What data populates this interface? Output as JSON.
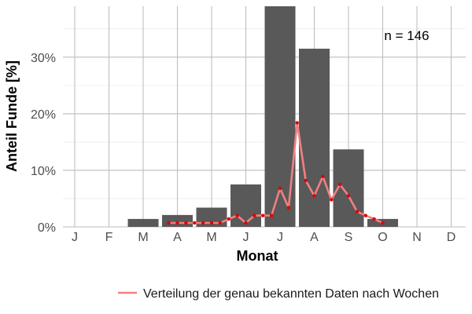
{
  "chart_data": {
    "type": "bar",
    "categories": [
      "J",
      "F",
      "M",
      "A",
      "M",
      "J",
      "J",
      "A",
      "S",
      "O",
      "N",
      "D"
    ],
    "values": [
      0,
      0,
      1.4,
      2.1,
      3.4,
      7.5,
      39.0,
      31.5,
      13.7,
      1.4,
      0,
      0
    ],
    "xlabel": "Monat",
    "ylabel": "Anteil Funde [%]",
    "ylim": [
      0,
      39
    ],
    "y_ticks": [
      0,
      10,
      20,
      30
    ],
    "y_tick_labels": [
      "0%",
      "10%",
      "20%",
      "30%"
    ],
    "annotation": "n = 146",
    "grid": true,
    "colors": {
      "bars": "#595959",
      "line": "#f08080",
      "points": "#e00000",
      "grid": "#bebebe"
    },
    "series": [
      {
        "type": "line",
        "name": "Verteilung der genau bekannten Daten nach Wochen",
        "x": [
          2.75,
          3.0,
          3.25,
          3.5,
          3.75,
          4.0,
          4.25,
          4.5,
          4.75,
          5.0,
          5.25,
          5.5,
          5.75,
          6.0,
          6.25,
          6.5,
          6.75,
          7.0,
          7.25,
          7.5,
          7.75,
          8.0,
          8.25,
          8.5,
          8.75,
          9.0
        ],
        "values": [
          0.7,
          0.7,
          0.7,
          0.7,
          0.7,
          0.7,
          0.7,
          1.4,
          2.0,
          0.7,
          2.0,
          2.0,
          2.0,
          6.8,
          3.4,
          18.4,
          8.2,
          5.5,
          8.9,
          4.8,
          7.5,
          5.5,
          2.7,
          2.0,
          1.4,
          0.7
        ]
      }
    ],
    "legend": {
      "label": "Verteilung der genau bekannten Daten nach Wochen",
      "position": "bottom-right"
    }
  }
}
